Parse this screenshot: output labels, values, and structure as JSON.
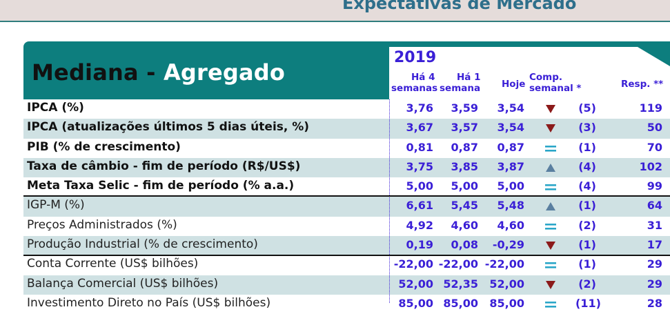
{
  "page": {
    "top_title": "Expectativas de Mercado",
    "heading_part1": "Mediana - ",
    "heading_part2": "Agregado",
    "year": "2019"
  },
  "columns": {
    "c1": [
      "Há 4",
      "semanas"
    ],
    "c2": [
      "Há 1",
      "semana"
    ],
    "c3": "Hoje",
    "cmp": [
      "Comp.",
      "semanal *"
    ],
    "resp": "Resp. **"
  },
  "colors": {
    "teal": "#0d7e7e",
    "blue": "#3a1fd6",
    "down": "#8b1a1a",
    "up": "#5a7fa0",
    "equal": "#2aa6c8",
    "row_shade": "#cfe1e3"
  },
  "rows": [
    {
      "label": "IPCA (%)",
      "c1": "3,76",
      "c2": "3,59",
      "c3": "3,54",
      "trend": "down",
      "cmp": "(5)",
      "resp": "119",
      "bold": true
    },
    {
      "label": "IPCA (atualizações últimos 5 dias úteis, %)",
      "c1": "3,67",
      "c2": "3,57",
      "c3": "3,54",
      "trend": "down",
      "cmp": "(3)",
      "resp": "50",
      "bold": true
    },
    {
      "label": "PIB (% de crescimento)",
      "c1": "0,81",
      "c2": "0,87",
      "c3": "0,87",
      "trend": "equal",
      "cmp": "(1)",
      "resp": "70",
      "bold": true
    },
    {
      "label": "Taxa de câmbio - fim de período (R$/US$)",
      "c1": "3,75",
      "c2": "3,85",
      "c3": "3,87",
      "trend": "up",
      "cmp": "(4)",
      "resp": "102",
      "bold": true
    },
    {
      "label": "Meta Taxa Selic - fim de período (% a.a.)",
      "c1": "5,00",
      "c2": "5,00",
      "c3": "5,00",
      "trend": "equal",
      "cmp": "(4)",
      "resp": "99",
      "bold": true
    },
    {
      "label": "IGP-M (%)",
      "c1": "6,61",
      "c2": "5,45",
      "c3": "5,48",
      "trend": "up",
      "cmp": "(1)",
      "resp": "64",
      "bold": false
    },
    {
      "label": "Preços Administrados (%)",
      "c1": "4,92",
      "c2": "4,60",
      "c3": "4,60",
      "trend": "equal",
      "cmp": "(2)",
      "resp": "31",
      "bold": false
    },
    {
      "label": "Produção Industrial (% de crescimento)",
      "c1": "0,19",
      "c2": "0,08",
      "c3": "-0,29",
      "trend": "down",
      "cmp": "(1)",
      "resp": "17",
      "bold": false
    },
    {
      "label": "Conta Corrente (US$ bilhões)",
      "c1": "-22,00",
      "c2": "-22,00",
      "c3": "-22,00",
      "trend": "equal",
      "cmp": "(1)",
      "resp": "29",
      "bold": false
    },
    {
      "label": "Balança Comercial (US$ bilhões)",
      "c1": "52,00",
      "c2": "52,35",
      "c3": "52,00",
      "trend": "down",
      "cmp": "(2)",
      "resp": "29",
      "bold": false
    },
    {
      "label": "Investimento Direto no País (US$ bilhões)",
      "c1": "85,00",
      "c2": "85,00",
      "c3": "85,00",
      "trend": "equal",
      "cmp": "(11)",
      "resp": "28",
      "bold": false
    }
  ]
}
